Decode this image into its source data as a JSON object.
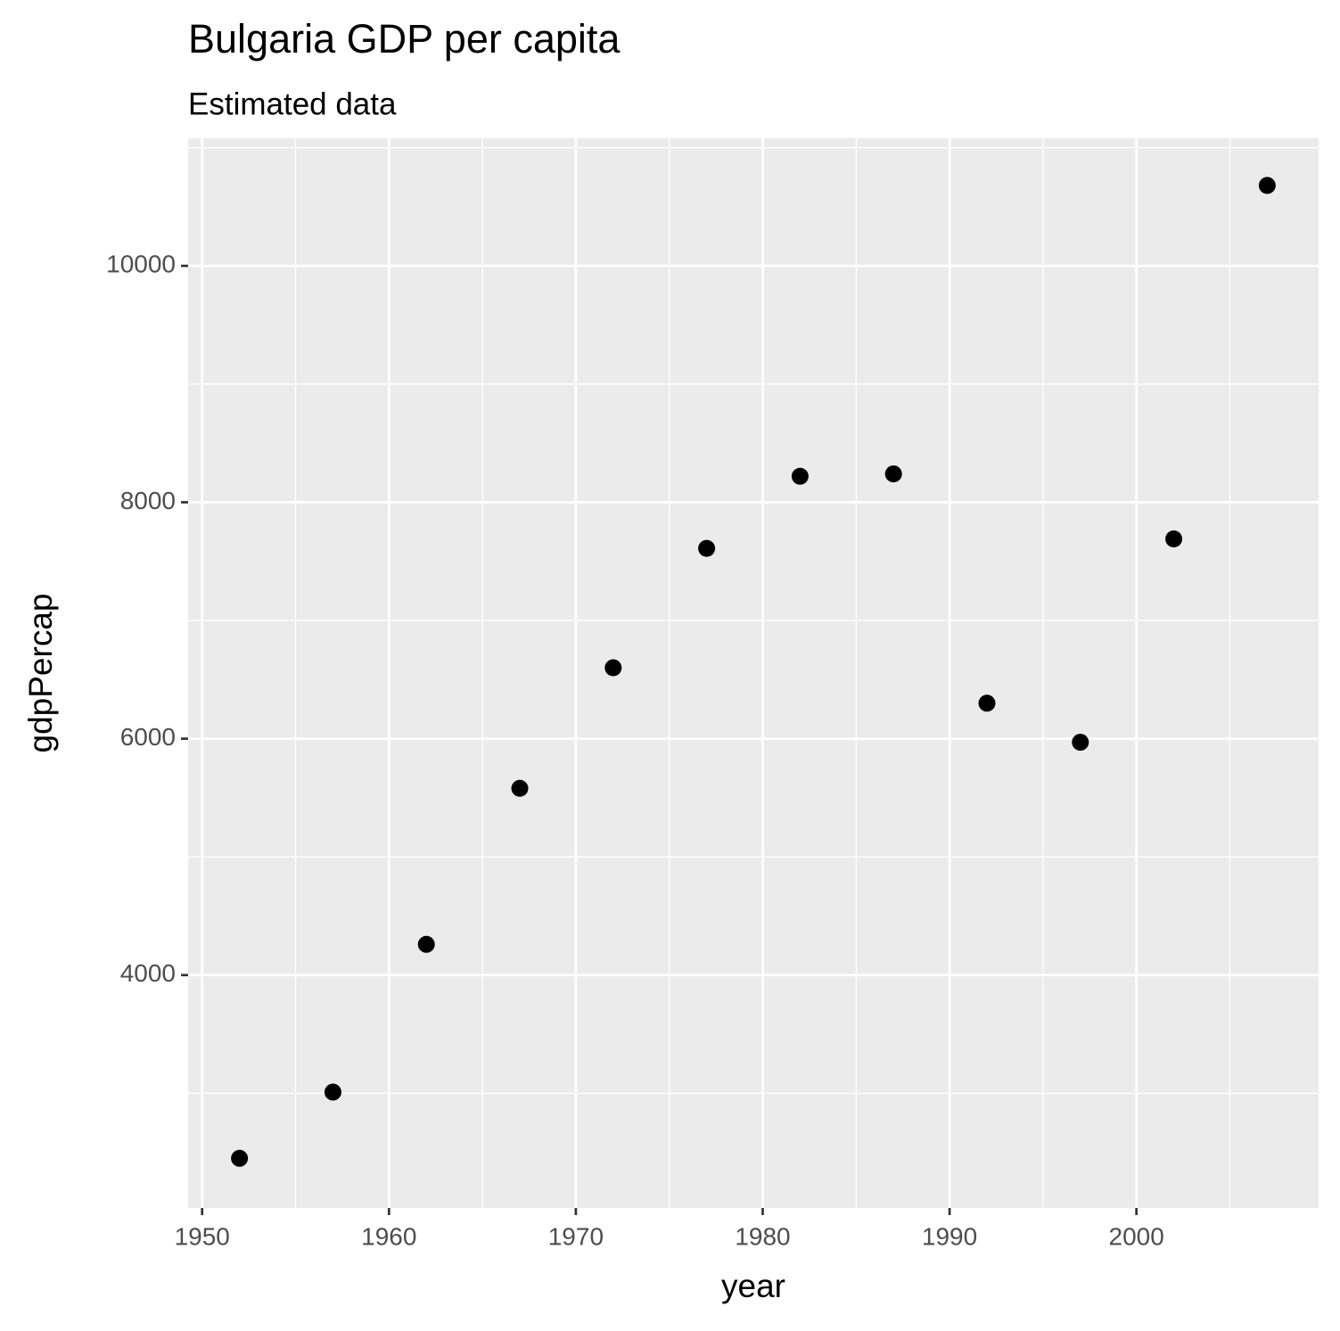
{
  "chart_data": {
    "type": "scatter",
    "title": "Bulgaria GDP per capita",
    "subtitle": "Estimated data",
    "x_label": "year",
    "y_label": "gdpPercap",
    "x": [
      1952,
      1957,
      1962,
      1967,
      1972,
      1977,
      1982,
      1987,
      1992,
      1997,
      2002,
      2007
    ],
    "values": [
      2450,
      3010,
      4260,
      5580,
      6600,
      7610,
      8220,
      8240,
      6300,
      5970,
      7690,
      10680
    ],
    "color": "#000000",
    "xlim": [
      1949.25,
      2009.75
    ],
    "xticks": [
      1950,
      1960,
      1970,
      1980,
      1990,
      2000
    ],
    "ylim": [
      2030,
      11080
    ],
    "yticks": [
      4000,
      6000,
      8000,
      10000
    ],
    "grid": true
  }
}
